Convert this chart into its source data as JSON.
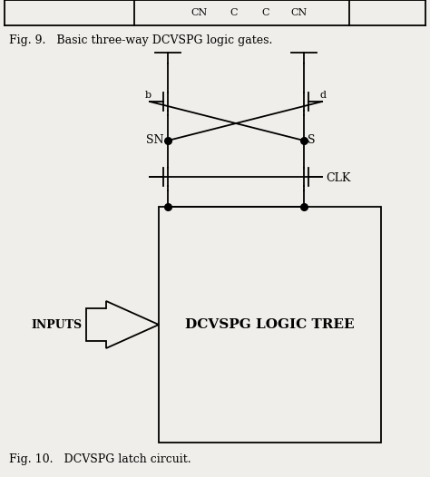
{
  "bg_color": "#f0eeea",
  "line_color": "#000000",
  "fig9_caption": "Fig. 9.   Basic three-way DCVSPG logic gates.",
  "fig10_caption": "Fig. 10.   DCVSPG latch circuit.",
  "latch_label": "DCVSPG LOGIC TREE",
  "clk_label": "CLK",
  "sn_label": "SN",
  "s_label": "S",
  "inputs_label": "INPUTS",
  "b_label": "b",
  "d_label": "d",
  "top_labels": [
    "CN",
    "C",
    "C",
    "CN"
  ]
}
